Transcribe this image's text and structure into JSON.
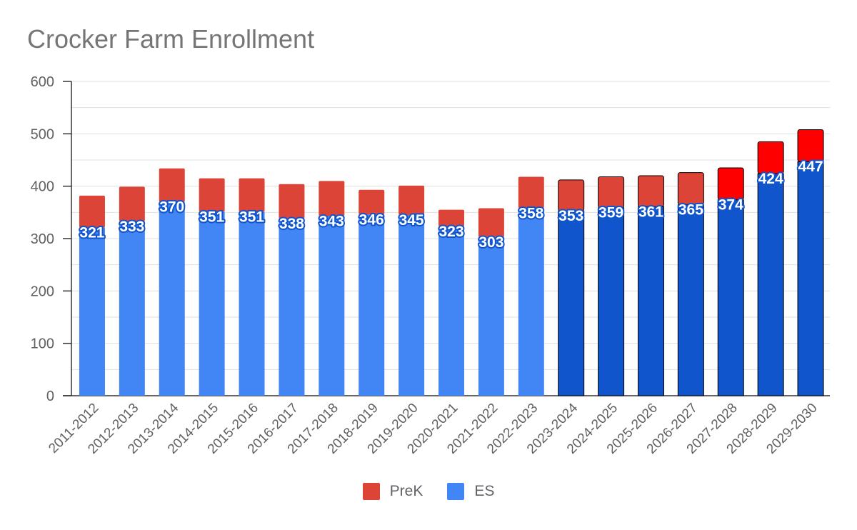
{
  "chart_data": {
    "type": "bar",
    "stacked": true,
    "title": "Crocker Farm Enrollment",
    "xlabel": "",
    "ylabel": "",
    "ylim": [
      0,
      600
    ],
    "yticks": [
      0,
      100,
      200,
      300,
      400,
      500,
      600
    ],
    "categories": [
      "2011-2012",
      "2012-2013",
      "2013-2014",
      "2014-2015",
      "2015-2016",
      "2016-2017",
      "2017-2018",
      "2018-2019",
      "2019-2020",
      "2020-2021",
      "2021-2022",
      "2022-2023",
      "2023-2024",
      "2024-2025",
      "2025-2026",
      "2026-2027",
      "2027-2028",
      "2028-2029",
      "2029-2030"
    ],
    "series": [
      {
        "name": "ES",
        "color": "#4285f4",
        "projected_color": "#1155cc",
        "values": [
          321,
          333,
          370,
          351,
          351,
          338,
          343,
          346,
          345,
          323,
          303,
          358,
          353,
          359,
          361,
          365,
          374,
          424,
          447
        ]
      },
      {
        "name": "PreK",
        "color": "#db4437",
        "projected_color": "#ff0000",
        "values": [
          61,
          66,
          64,
          64,
          64,
          66,
          67,
          47,
          56,
          32,
          55,
          60,
          59,
          59,
          59,
          61,
          61,
          61,
          61
        ]
      }
    ],
    "projected_shading_from_index": 12,
    "projected_prek_bright_from_index": 16,
    "legend_position": "bottom",
    "grid": true
  },
  "legend": {
    "items": [
      {
        "label": "PreK",
        "color": "#db4437"
      },
      {
        "label": "ES",
        "color": "#4285f4"
      }
    ]
  }
}
